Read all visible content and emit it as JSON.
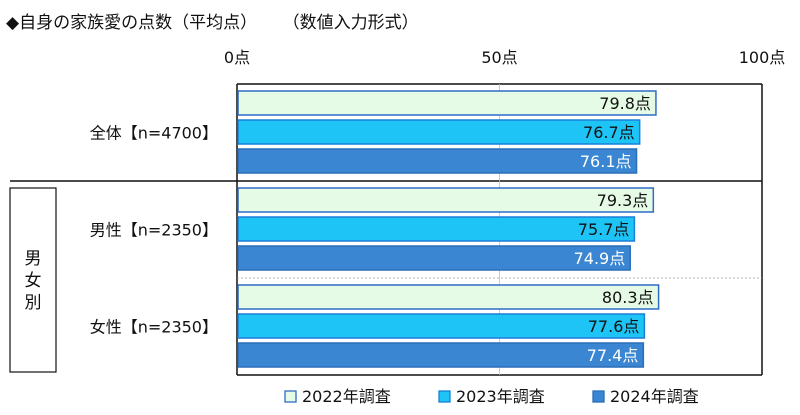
{
  "header": {
    "title": "◆自身の家族愛の点数（平均点）",
    "note": "（数値入力形式）"
  },
  "colors": {
    "s2022_fill": "#e6fbe6",
    "s2022_stroke": "#2f6bc9",
    "s2023_fill": "#1ec4f5",
    "s2023_stroke": "#1a7fd6",
    "s2024_fill": "#3a86d2",
    "s2024_stroke": "#2a6fb8"
  },
  "chart_data": {
    "type": "bar",
    "orientation": "horizontal",
    "xlim": [
      0,
      100
    ],
    "xticks": [
      0,
      50,
      100
    ],
    "tick_labels": [
      "0点",
      "50点",
      "100点"
    ],
    "groups": [
      {
        "label": "全体【n=4700】",
        "values": [
          79.8,
          76.7,
          76.1
        ],
        "value_labels": [
          "79.8点",
          "76.7点",
          "76.1点"
        ]
      },
      {
        "label": "男性【n=2350】",
        "values": [
          79.3,
          75.7,
          74.9
        ],
        "value_labels": [
          "79.3点",
          "75.7点",
          "74.9点"
        ]
      },
      {
        "label": "女性【n=2350】",
        "values": [
          80.3,
          77.6,
          77.4
        ],
        "value_labels": [
          "80.3点",
          "77.6点",
          "77.4点"
        ]
      }
    ],
    "section_label": "男女別",
    "legend": [
      "2022年調査",
      "2023年調査",
      "2024年調査"
    ],
    "legend_position": "bottom"
  }
}
